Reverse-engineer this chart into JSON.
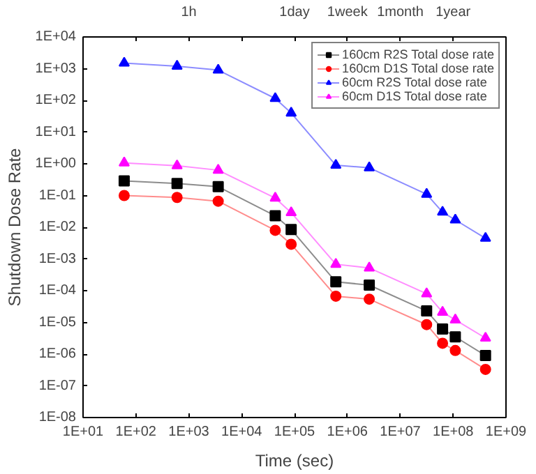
{
  "chart_data": {
    "type": "line",
    "xlabel": "Time (sec)",
    "ylabel": "Shutdown Dose Rate",
    "log": "xy",
    "grid": false,
    "legend": "top right",
    "x": [
      60,
      600,
      3600,
      43200,
      86400,
      604800,
      2592000,
      31536000,
      63072000,
      110000000,
      410000000
    ],
    "xlim": [
      10,
      1000000000
    ],
    "ylim": [
      1e-08,
      10000
    ],
    "xticks": [
      {
        "value": 10,
        "label": "1E+01"
      },
      {
        "value": 100,
        "label": "1E+02"
      },
      {
        "value": 1000,
        "label": "1E+03"
      },
      {
        "value": 10000,
        "label": "1E+04"
      },
      {
        "value": 100000,
        "label": "1E+05"
      },
      {
        "value": 1000000,
        "label": "1E+06"
      },
      {
        "value": 10000000,
        "label": "1E+07"
      },
      {
        "value": 100000000,
        "label": "1E+08"
      },
      {
        "value": 1000000000,
        "label": "1E+09"
      }
    ],
    "annotations": [
      "1h",
      "1day",
      "1week",
      "1month",
      "1year"
    ],
    "yticks": [
      {
        "value": 1e-08,
        "label": "1E-08"
      },
      {
        "value": 1e-07,
        "label": "1E-07"
      },
      {
        "value": 1e-06,
        "label": "1E-06"
      },
      {
        "value": 1e-05,
        "label": "1E-05"
      },
      {
        "value": 0.0001,
        "label": "1E-04"
      },
      {
        "value": 0.001,
        "label": "1E-03"
      },
      {
        "value": 0.01,
        "label": "1E-02"
      },
      {
        "value": 0.1,
        "label": "1E-01"
      },
      {
        "value": 1,
        "label": "1E+00"
      },
      {
        "value": 10,
        "label": "1E+01"
      },
      {
        "value": 100,
        "label": "1E+02"
      },
      {
        "value": 1000,
        "label": "1E+03"
      },
      {
        "value": 10000,
        "label": "1E+04"
      }
    ],
    "series": [
      {
        "name": "160cm R2S Total dose rate",
        "color": "#000000",
        "marker": "square",
        "values": [
          0.29,
          0.24,
          0.19,
          0.023,
          0.0085,
          0.00019,
          0.00015,
          2.3e-05,
          6.2e-06,
          3.5e-06,
          9e-07
        ]
      },
      {
        "name": "160cm D1S Total dose rate",
        "color": "#ff0000",
        "marker": "circle",
        "values": [
          0.1,
          0.087,
          0.066,
          0.008,
          0.0029,
          6.7e-05,
          5.4e-05,
          8.5e-06,
          2.2e-06,
          1.3e-06,
          3.3e-07
        ]
      },
      {
        "name": "60cm R2S Total dose rate",
        "color": "#0000ff",
        "marker": "triangle",
        "values": [
          1500,
          1200,
          900,
          115,
          40,
          0.9,
          0.75,
          0.11,
          0.03,
          0.017,
          0.0045
        ]
      },
      {
        "name": "60cm D1S Total dose rate",
        "color": "#ff00ff",
        "marker": "triangle",
        "values": [
          1.07,
          0.87,
          0.63,
          0.083,
          0.029,
          0.00068,
          0.00052,
          8e-05,
          2.1e-05,
          1.2e-05,
          3.2e-06
        ]
      }
    ]
  }
}
